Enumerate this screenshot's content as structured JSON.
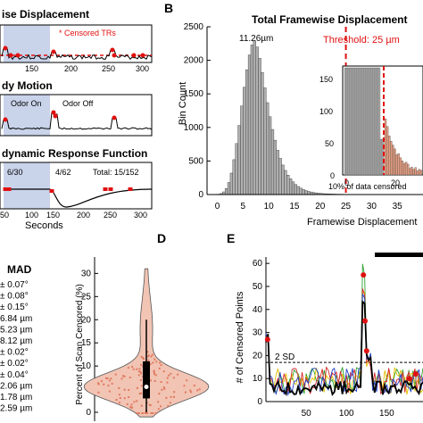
{
  "panel_labels": {
    "b": "B",
    "d": "D",
    "e": "E"
  },
  "colors": {
    "red": "#e01010",
    "gray_bar": "#b0b0b0",
    "shade": "#c9d3ea",
    "violin": "#f2c4b4",
    "violin_dot": "#e07a5f",
    "orange_bar": "#e8a184",
    "threshold": "#e01010"
  },
  "panel_a": {
    "sub1": {
      "title": "ise Displacement",
      "legend": "* Censored TRs",
      "ticks_x": [
        "150",
        "200",
        "250",
        "300"
      ]
    },
    "sub2": {
      "title": "dy Motion",
      "odor_on": "Odor On",
      "odor_off": "Odor Off"
    },
    "sub3": {
      "title": "dynamic Response Function",
      "count1": "6/30",
      "count2": "4/62",
      "total": "Total: 15/152",
      "ticks_x": [
        "50",
        "100",
        "150",
        "200",
        "250",
        "300"
      ],
      "xlabel": "Seconds"
    }
  },
  "mad": {
    "header": "MAD",
    "values": [
      "± 0.07°",
      "± 0.08°",
      "± 0.15°",
      "6.84 µm",
      "5.23 µm",
      "8.12 µm",
      "± 0.02°",
      "± 0.02°",
      "± 0.04°",
      "2.06 µm",
      "1.78 µm",
      "2.59 µm"
    ]
  },
  "panel_b": {
    "peak_label": "11.26µm",
    "threshold_label": "Threshold: 25 µm",
    "inset_note": "10% of data censored"
  },
  "panel_d": {
    "ylabel": "Percent of Scan Censored (%)"
  },
  "panel_e": {
    "ylabel": "# of Censored Points",
    "sd_label": "2 SD"
  },
  "chart_data": [
    {
      "type": "bar",
      "title": "Total Framewise Displacement",
      "xlabel": "Framewise Displacement",
      "ylabel": "Bin Count",
      "xlim": [
        -2,
        40
      ],
      "ylim": [
        0,
        2500
      ],
      "xticks": [
        "0",
        "5",
        "10",
        "15",
        "20",
        "25",
        "30",
        "35"
      ],
      "yticks": [
        "0",
        "500",
        "1000",
        "1500",
        "2000",
        "2500"
      ],
      "threshold": 25,
      "bin_width": 0.5,
      "bin_start": 0,
      "values": [
        5,
        15,
        40,
        90,
        180,
        320,
        520,
        760,
        1030,
        1320,
        1600,
        1860,
        2080,
        2230,
        2290,
        2200,
        2030,
        1820,
        1590,
        1370,
        1160,
        970,
        810,
        660,
        540,
        440,
        360,
        290,
        235,
        190,
        150,
        120,
        95,
        75,
        60,
        48,
        38,
        30,
        25,
        20,
        16,
        13,
        11,
        9,
        8,
        7,
        6,
        5,
        5,
        4,
        4,
        3,
        3,
        3,
        2,
        2,
        2,
        2,
        1,
        1,
        1,
        1,
        1,
        1,
        1,
        1,
        1,
        1,
        1,
        1,
        1,
        1,
        1,
        1,
        1,
        1
      ],
      "inset": {
        "ylim": [
          0,
          160
        ],
        "yticks": [
          "0",
          "50",
          "100",
          "150"
        ],
        "xticks": [
          "0",
          "20"
        ]
      }
    },
    {
      "type": "scatter",
      "panel": "D",
      "ylabel": "Percent of Scan Censored (%)",
      "ylim": [
        0,
        32
      ],
      "yticks": [
        "0",
        "5",
        "10",
        "15",
        "20",
        "25",
        "30"
      ],
      "median": 5.5,
      "q1": 3,
      "q3": 11,
      "whisker_low": 0,
      "whisker_high": 20
    },
    {
      "type": "line",
      "panel": "E",
      "ylabel": "# of Censored Points",
      "ylim": [
        0,
        62
      ],
      "yticks": [
        "0",
        "10",
        "20",
        "30",
        "40",
        "50",
        "60"
      ],
      "xticks": [
        "50",
        "100",
        "150"
      ],
      "xlim": [
        0,
        195
      ],
      "sd_line": 17
    }
  ]
}
